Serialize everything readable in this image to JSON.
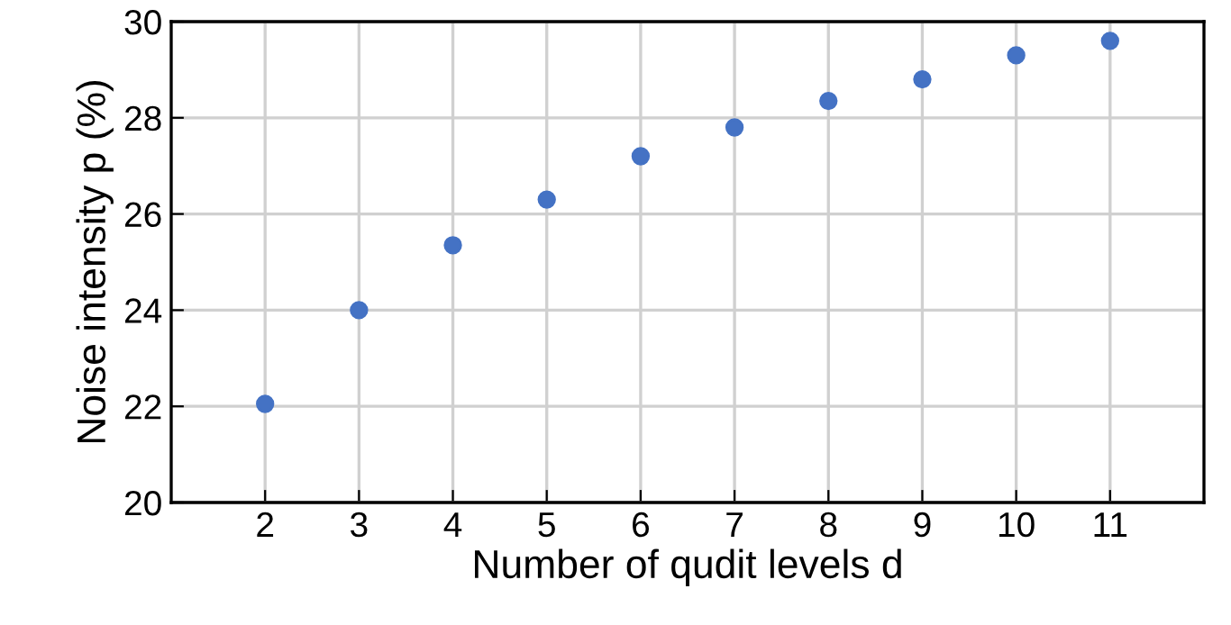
{
  "chart_data": {
    "type": "scatter",
    "xlabel": "Number of qudit levels d",
    "ylabel": "Noise intensity p (%)",
    "x": [
      2,
      3,
      4,
      5,
      6,
      7,
      8,
      9,
      10,
      11
    ],
    "series": [
      {
        "color": "#4472c4",
        "values": [
          22.05,
          24.0,
          25.35,
          26.3,
          27.2,
          27.8,
          28.35,
          28.8,
          29.3,
          29.6
        ]
      }
    ],
    "xlim": [
      1,
      12
    ],
    "xticks": [
      2,
      3,
      4,
      5,
      6,
      7,
      8,
      9,
      10,
      11
    ],
    "ylim": [
      20,
      30
    ],
    "yticks": [
      20,
      22,
      24,
      26,
      28,
      30
    ],
    "grid": true,
    "marker": "circle"
  }
}
